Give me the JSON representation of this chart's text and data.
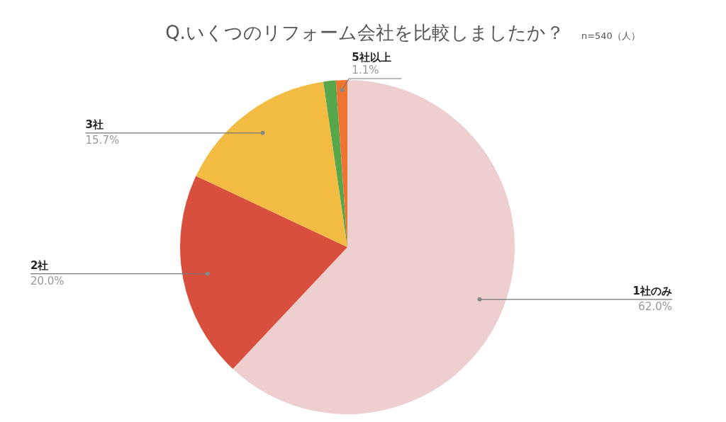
{
  "chart_data": {
    "type": "pie",
    "title": "Q.いくつのリフォーム会社を比較しましたか？",
    "subtitle": "n=540（人）",
    "categories": [
      "1社のみ",
      "2社",
      "3社",
      null,
      "5社以上"
    ],
    "values": [
      62.0,
      20.0,
      15.7,
      1.2,
      1.1
    ],
    "colors": [
      "#eecfcf",
      "#d94f3d",
      "#f1bc41",
      "#56a64b",
      "#ee7430"
    ],
    "value_labels": [
      "62.0%",
      "20.0%",
      "15.7%",
      null,
      "1.1%"
    ],
    "legend": false
  }
}
